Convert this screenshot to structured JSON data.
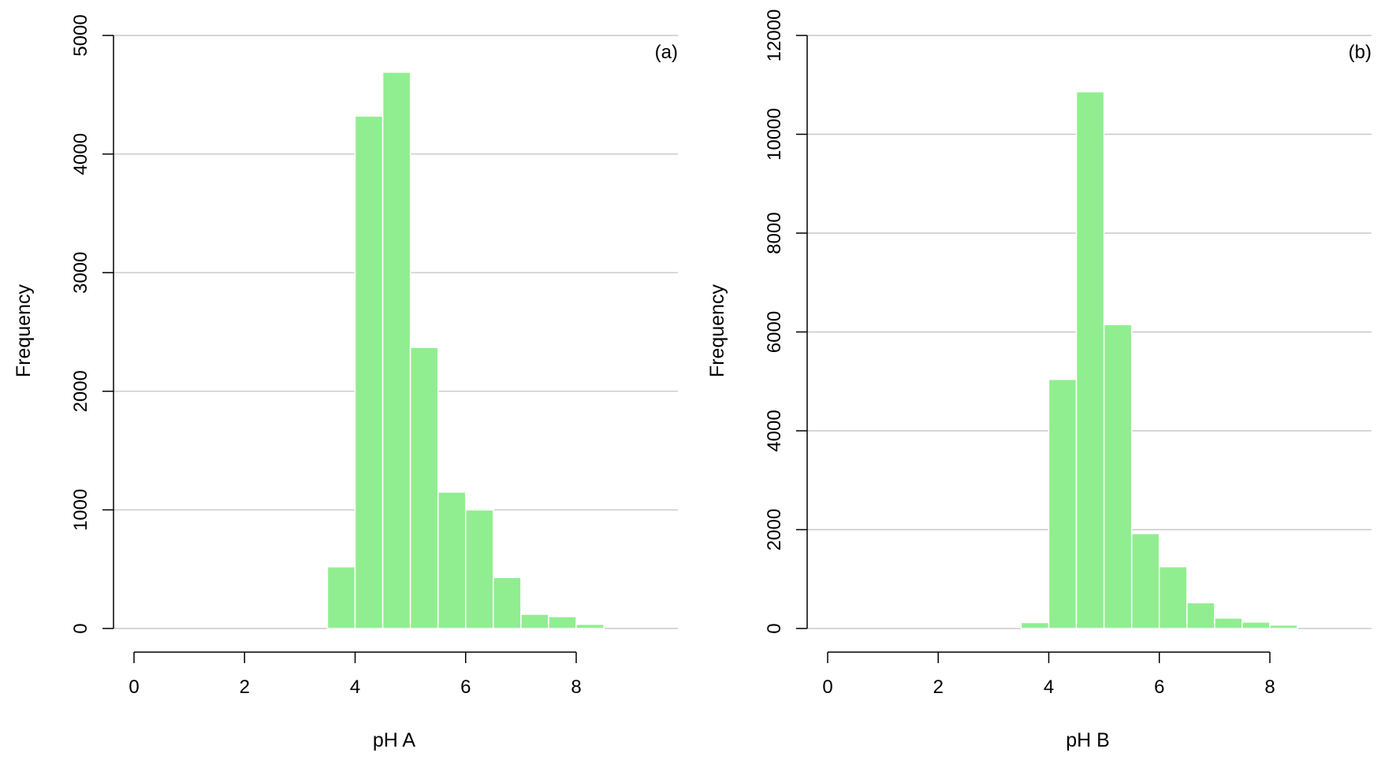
{
  "colors": {
    "bar_fill": "#90ee90",
    "bar_edge": "#ffffff",
    "grid": "#c8c8c8",
    "axis": "#000000"
  },
  "chart_data": [
    {
      "type": "bar",
      "subtype": "histogram",
      "panel_label": "(a)",
      "xlabel": "pH A",
      "ylabel": "Frequency",
      "bin_edges": [
        3.5,
        4.0,
        4.5,
        5.0,
        5.5,
        6.0,
        6.5,
        7.0,
        7.5,
        8.0,
        8.5
      ],
      "values": [
        520,
        4320,
        4690,
        2370,
        1150,
        1000,
        430,
        120,
        100,
        35
      ],
      "xlim": [
        0,
        9.8
      ],
      "ylim": [
        0,
        5000
      ],
      "xticks": [
        0,
        2,
        4,
        6,
        8
      ],
      "yticks": [
        0,
        1000,
        2000,
        3000,
        4000,
        5000
      ],
      "grid": "horizontal"
    },
    {
      "type": "bar",
      "subtype": "histogram",
      "panel_label": "(b)",
      "xlabel": "pH B",
      "ylabel": "Frequency",
      "bin_edges": [
        3.5,
        4.0,
        4.5,
        5.0,
        5.5,
        6.0,
        6.5,
        7.0,
        7.5,
        8.0,
        8.5
      ],
      "values": [
        120,
        5040,
        10860,
        6150,
        1920,
        1250,
        520,
        210,
        130,
        70
      ],
      "xlim": [
        0,
        9.8
      ],
      "ylim": [
        0,
        12000
      ],
      "xticks": [
        0,
        2,
        4,
        6,
        8
      ],
      "yticks": [
        0,
        2000,
        4000,
        6000,
        8000,
        10000,
        12000
      ],
      "grid": "horizontal"
    }
  ]
}
